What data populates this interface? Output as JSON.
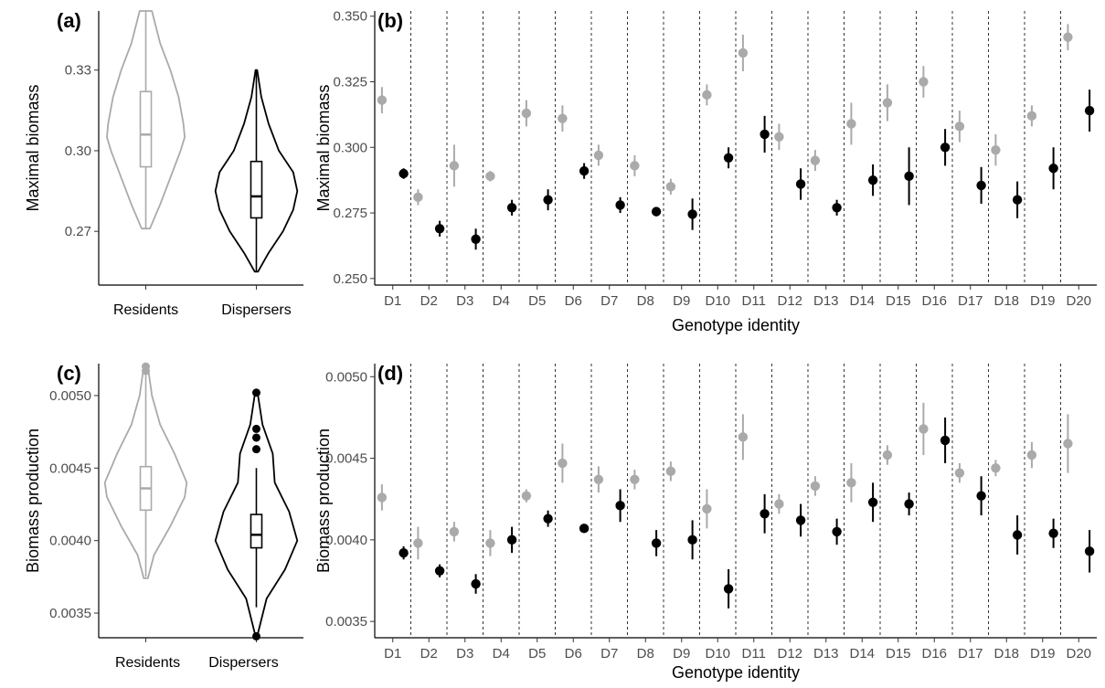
{
  "colors": {
    "residents": "#aaaaaa",
    "dispersers": "#000000"
  },
  "chart_data": [
    {
      "panel": "(a)",
      "type": "violin",
      "xlabel": "",
      "ylabel": "Maximal biomass",
      "categories": [
        "Residents",
        "Dispersers"
      ],
      "ylim": [
        0.25,
        0.352
      ],
      "yticks": [
        0.27,
        0.3,
        0.33
      ],
      "ytick_labels": [
        "0.27",
        "0.30",
        "0.33"
      ],
      "grid": false,
      "series": [
        {
          "group": "Residents",
          "min": 0.271,
          "q1": 0.294,
          "median": 0.306,
          "q3": 0.322,
          "max": 0.352,
          "density": [
            [
              0.271,
              0.1
            ],
            [
              0.28,
              0.35
            ],
            [
              0.29,
              0.6
            ],
            [
              0.3,
              0.85
            ],
            [
              0.305,
              0.95
            ],
            [
              0.31,
              0.92
            ],
            [
              0.32,
              0.8
            ],
            [
              0.33,
              0.6
            ],
            [
              0.34,
              0.35
            ],
            [
              0.352,
              0.15
            ]
          ],
          "outliers": []
        },
        {
          "group": "Dispersers",
          "min": 0.255,
          "q1": 0.275,
          "median": 0.283,
          "q3": 0.296,
          "max": 0.33,
          "density": [
            [
              0.255,
              0.04
            ],
            [
              0.262,
              0.3
            ],
            [
              0.27,
              0.65
            ],
            [
              0.278,
              0.9
            ],
            [
              0.285,
              1.0
            ],
            [
              0.292,
              0.9
            ],
            [
              0.3,
              0.55
            ],
            [
              0.31,
              0.3
            ],
            [
              0.32,
              0.12
            ],
            [
              0.33,
              0.02
            ]
          ],
          "outliers": []
        }
      ]
    },
    {
      "panel": "(b)",
      "type": "pointrange",
      "xlabel": "Genotype identity",
      "ylabel": "Maximal biomass",
      "categories": [
        "D1",
        "D2",
        "D3",
        "D4",
        "D5",
        "D6",
        "D7",
        "D8",
        "D9",
        "D10",
        "D11",
        "D12",
        "D13",
        "D14",
        "D15",
        "D16",
        "D17",
        "D18",
        "D19",
        "D20"
      ],
      "ylim": [
        0.2475,
        0.352
      ],
      "yticks": [
        0.25,
        0.275,
        0.3,
        0.325,
        0.35
      ],
      "ytick_labels": [
        "0.250",
        "0.275",
        "0.300",
        "0.325",
        "0.350"
      ],
      "grid": false,
      "series": [
        {
          "group": "Residents",
          "values": [
            0.318,
            0.281,
            0.293,
            0.289,
            0.313,
            0.311,
            0.297,
            0.293,
            0.285,
            0.32,
            0.336,
            0.304,
            0.295,
            0.309,
            0.317,
            0.325,
            0.308,
            0.299,
            0.312,
            0.342
          ],
          "err": [
            0.005,
            0.003,
            0.008,
            0.002,
            0.005,
            0.005,
            0.004,
            0.004,
            0.003,
            0.004,
            0.007,
            0.005,
            0.004,
            0.008,
            0.007,
            0.006,
            0.006,
            0.006,
            0.004,
            0.005
          ]
        },
        {
          "group": "Dispersers",
          "values": [
            0.29,
            0.269,
            0.265,
            0.277,
            0.28,
            0.291,
            0.278,
            0.2755,
            0.2745,
            0.296,
            0.305,
            0.286,
            0.277,
            0.2875,
            0.289,
            0.3,
            0.2855,
            0.28,
            0.292,
            0.314
          ],
          "err": [
            0.002,
            0.003,
            0.004,
            0.003,
            0.004,
            0.003,
            0.003,
            0.001,
            0.006,
            0.004,
            0.007,
            0.006,
            0.003,
            0.006,
            0.011,
            0.007,
            0.007,
            0.007,
            0.008,
            0.008
          ]
        }
      ]
    },
    {
      "panel": "(c)",
      "type": "violin",
      "xlabel": "",
      "ylabel": "Biomass production",
      "categories": [
        "Residents",
        "Dispersers"
      ],
      "ylim": [
        0.00333,
        0.00522
      ],
      "yticks": [
        0.0035,
        0.004,
        0.0045,
        0.005
      ],
      "ytick_labels": [
        "0.0035",
        "0.0040",
        "0.0045",
        "0.0050"
      ],
      "grid": false,
      "series": [
        {
          "group": "Residents",
          "min": 0.00375,
          "q1": 0.00421,
          "median": 0.00436,
          "q3": 0.00451,
          "max": 0.00515,
          "density": [
            [
              0.00374,
              0.05
            ],
            [
              0.0039,
              0.2
            ],
            [
              0.0041,
              0.6
            ],
            [
              0.0043,
              0.95
            ],
            [
              0.0044,
              1.0
            ],
            [
              0.0046,
              0.7
            ],
            [
              0.0048,
              0.35
            ],
            [
              0.005,
              0.15
            ],
            [
              0.0052,
              0.05
            ]
          ],
          "outliers": [
            0.00517,
            0.0052
          ]
        },
        {
          "group": "Dispersers",
          "min": 0.00354,
          "q1": 0.00395,
          "median": 0.00404,
          "q3": 0.00418,
          "max": 0.0045,
          "density": [
            [
              0.00334,
              0.02
            ],
            [
              0.0036,
              0.25
            ],
            [
              0.0038,
              0.7
            ],
            [
              0.004,
              1.0
            ],
            [
              0.0042,
              0.8
            ],
            [
              0.0044,
              0.45
            ],
            [
              0.0046,
              0.4
            ],
            [
              0.0048,
              0.15
            ],
            [
              0.00502,
              0.03
            ]
          ],
          "outliers": [
            0.00334,
            0.00463,
            0.00471,
            0.00477,
            0.00502
          ]
        }
      ]
    },
    {
      "panel": "(d)",
      "type": "pointrange",
      "xlabel": "Genotype identity",
      "ylabel": "Biomass production",
      "categories": [
        "D1",
        "D2",
        "D3",
        "D4",
        "D5",
        "D6",
        "D7",
        "D8",
        "D9",
        "D10",
        "D11",
        "D12",
        "D13",
        "D14",
        "D15",
        "D16",
        "D17",
        "D18",
        "D19",
        "D20"
      ],
      "ylim": [
        0.0034,
        0.00508
      ],
      "yticks": [
        0.0035,
        0.004,
        0.0045,
        0.005
      ],
      "ytick_labels": [
        "0.0035",
        "0.0040",
        "0.0045",
        "0.0050"
      ],
      "grid": false,
      "series": [
        {
          "group": "Residents",
          "values": [
            0.00426,
            0.00398,
            0.00405,
            0.00398,
            0.00427,
            0.00447,
            0.00437,
            0.00437,
            0.00442,
            0.00419,
            0.00463,
            0.00422,
            0.00433,
            0.00435,
            0.00452,
            0.00468,
            0.00441,
            0.00444,
            0.00452,
            0.00459
          ],
          "err": [
            8e-05,
            0.0001,
            6e-05,
            8e-05,
            4e-05,
            0.00012,
            8e-05,
            6e-05,
            6e-05,
            0.00012,
            0.00014,
            6e-05,
            6e-05,
            0.00012,
            6e-05,
            0.00016,
            6e-05,
            5e-05,
            8e-05,
            0.00018
          ]
        },
        {
          "group": "Dispersers",
          "values": [
            0.00392,
            0.00381,
            0.00373,
            0.004,
            0.00413,
            0.00407,
            0.00421,
            0.00398,
            0.004,
            0.0037,
            0.00416,
            0.00412,
            0.00405,
            0.00423,
            0.00422,
            0.00461,
            0.00427,
            0.00403,
            0.00404,
            0.00393
          ],
          "err": [
            4e-05,
            4e-05,
            6e-05,
            8e-05,
            5e-05,
            2e-05,
            0.0001,
            8e-05,
            0.00012,
            0.00012,
            0.00012,
            0.0001,
            8e-05,
            0.00012,
            7e-05,
            0.00014,
            0.00012,
            0.00012,
            9e-05,
            0.00013
          ]
        }
      ]
    }
  ]
}
